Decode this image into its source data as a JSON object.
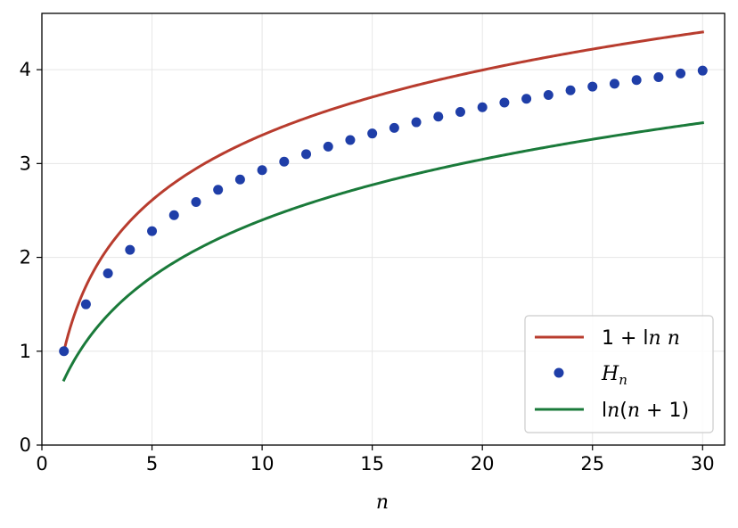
{
  "chart_data": {
    "type": "line",
    "title": "",
    "xlabel": "n",
    "ylabel": "",
    "xlim": [
      0,
      31
    ],
    "ylim": [
      0,
      4.6
    ],
    "x_ticks": [
      0,
      5,
      10,
      15,
      20,
      25,
      30
    ],
    "y_ticks": [
      0,
      1,
      2,
      3,
      4
    ],
    "x_tick_labels": [
      "0",
      "5",
      "10",
      "15",
      "20",
      "25",
      "30"
    ],
    "y_tick_labels": [
      "0",
      "1",
      "2",
      "3",
      "4"
    ],
    "grid": true,
    "legend_position": "bottom-right",
    "series": [
      {
        "name": "1 + ln n",
        "kind": "line",
        "color": "#b83c2e",
        "x_range": [
          1,
          30
        ],
        "values_at": {
          "x": [
            1,
            2,
            5,
            10,
            15,
            20,
            25,
            30
          ],
          "y": [
            1.0,
            1.69,
            2.61,
            3.3,
            3.71,
            4.0,
            4.22,
            4.4
          ]
        }
      },
      {
        "name": "H_n",
        "kind": "scatter",
        "color": "#1f3ea8",
        "x": [
          1,
          2,
          3,
          4,
          5,
          6,
          7,
          8,
          9,
          10,
          11,
          12,
          13,
          14,
          15,
          16,
          17,
          18,
          19,
          20,
          21,
          22,
          23,
          24,
          25,
          26,
          27,
          28,
          29,
          30
        ],
        "y": [
          1.0,
          1.5,
          1.83,
          2.08,
          2.28,
          2.45,
          2.59,
          2.72,
          2.83,
          2.93,
          3.02,
          3.1,
          3.18,
          3.25,
          3.32,
          3.38,
          3.44,
          3.5,
          3.55,
          3.6,
          3.65,
          3.69,
          3.73,
          3.78,
          3.82,
          3.85,
          3.89,
          3.92,
          3.96,
          3.99
        ]
      },
      {
        "name": "ln(n + 1)",
        "kind": "line",
        "color": "#1a7a3a",
        "x_range": [
          1,
          30
        ],
        "values_at": {
          "x": [
            1,
            2,
            5,
            10,
            15,
            20,
            25,
            30
          ],
          "y": [
            0.69,
            1.1,
            1.79,
            2.4,
            2.77,
            3.04,
            3.26,
            3.43
          ]
        }
      }
    ]
  }
}
